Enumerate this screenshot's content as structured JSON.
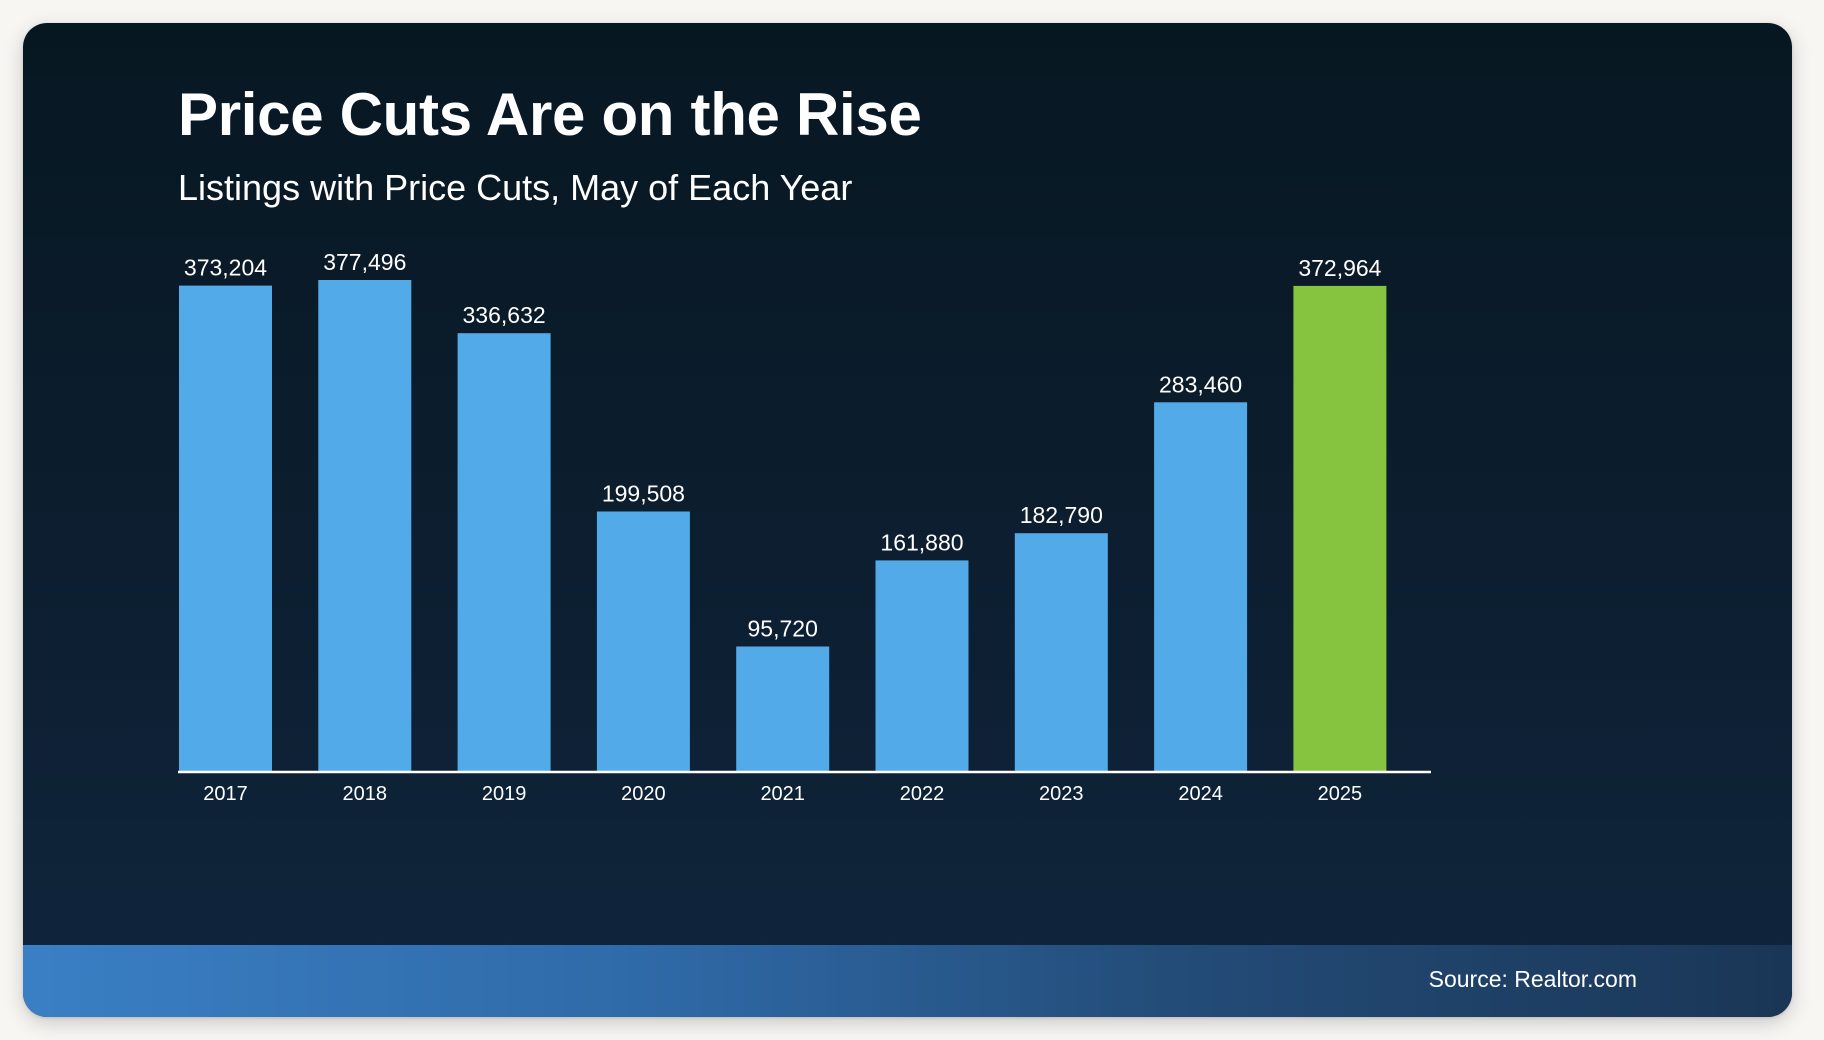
{
  "colors": {
    "bar": "#53aae8",
    "highlight_bar": "#86c440",
    "axis_line": "#ffffff",
    "label_text": "#ffffff"
  },
  "chart_data": {
    "type": "bar",
    "title": "Price Cuts Are on the Rise",
    "subtitle": "Listings with Price Cuts, May of Each Year",
    "xlabel": "",
    "ylabel": "",
    "categories": [
      "2017",
      "2018",
      "2019",
      "2020",
      "2021",
      "2022",
      "2023",
      "2024",
      "2025"
    ],
    "values": [
      373204,
      377496,
      336632,
      199508,
      95720,
      161880,
      182790,
      283460,
      372964
    ],
    "value_labels": [
      "373,204",
      "377,496",
      "336,632",
      "199,508",
      "95,720",
      "161,880",
      "182,790",
      "283,460",
      "372,964"
    ],
    "highlight_category": "2025",
    "ylim": [
      0,
      377496
    ],
    "grid": false,
    "legend": "none"
  },
  "footer": {
    "source": "Source: Realtor.com"
  }
}
